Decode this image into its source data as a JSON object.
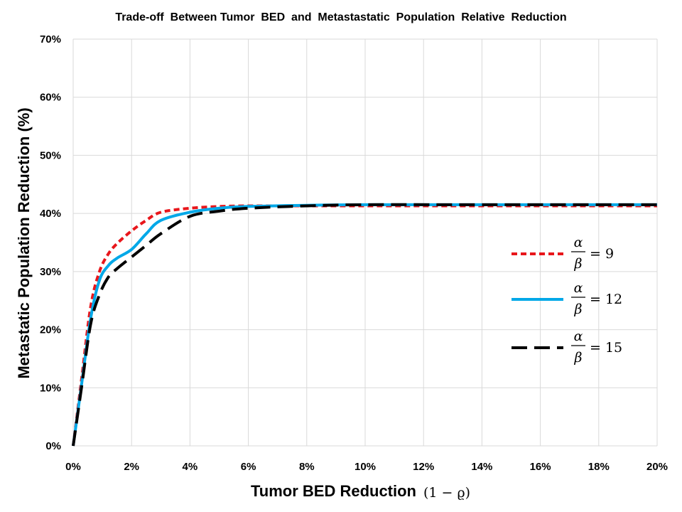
{
  "chart_data": {
    "type": "line",
    "title": "Trade-off  Between Tumor  BED  and  Metastastatic  Population  Relative  Reduction",
    "xlabel": "Tumor BED Reduction",
    "xlabel_math": "(1 − ϱ)",
    "ylabel": "Metastatic Population Reduction (%)",
    "xlim": [
      0,
      20
    ],
    "ylim": [
      0,
      70
    ],
    "x_ticks": [
      0,
      2,
      4,
      6,
      8,
      10,
      12,
      14,
      16,
      18,
      20
    ],
    "y_ticks": [
      0,
      10,
      20,
      30,
      40,
      50,
      60,
      70
    ],
    "x_tick_labels": [
      "0%",
      "2%",
      "4%",
      "6%",
      "8%",
      "10%",
      "12%",
      "14%",
      "16%",
      "18%",
      "20%"
    ],
    "y_tick_labels": [
      "0%",
      "10%",
      "20%",
      "30%",
      "40%",
      "50%",
      "60%",
      "70%"
    ],
    "grid": true,
    "legend_position": "right",
    "series": [
      {
        "name": "α/β = 9",
        "ratio_label": "9",
        "color": "#e8161b",
        "style": "dashed",
        "x": [
          0,
          0.3,
          0.6,
          0.9,
          1.2,
          1.5,
          2,
          2.5,
          3,
          4,
          5,
          6,
          8,
          10,
          14,
          20
        ],
        "y": [
          0,
          12,
          24,
          30,
          33,
          34.8,
          37,
          38.8,
          40.2,
          40.9,
          41.2,
          41.3,
          41.3,
          41.3,
          41.3,
          41.3
        ]
      },
      {
        "name": "α/β = 12",
        "ratio_label": "12",
        "color": "#00a8e8",
        "style": "solid",
        "x": [
          0,
          0.3,
          0.6,
          0.9,
          1.2,
          1.5,
          2,
          2.5,
          3,
          4,
          5,
          6,
          8,
          10,
          14,
          20
        ],
        "y": [
          0,
          11,
          22,
          28.5,
          31,
          32.3,
          33.8,
          36.5,
          38.8,
          40.2,
          40.9,
          41.2,
          41.4,
          41.5,
          41.5,
          41.5
        ]
      },
      {
        "name": "α/β = 15",
        "ratio_label": "15",
        "color": "#000000",
        "style": "long-dashed",
        "x": [
          0,
          0.3,
          0.6,
          0.9,
          1.2,
          1.5,
          2,
          2.5,
          3,
          4,
          5,
          6,
          8,
          10,
          14,
          20
        ],
        "y": [
          0,
          10.5,
          21,
          26,
          29,
          30.5,
          32.5,
          34.5,
          36.5,
          39.5,
          40.4,
          40.9,
          41.3,
          41.5,
          41.5,
          41.5
        ]
      }
    ]
  }
}
